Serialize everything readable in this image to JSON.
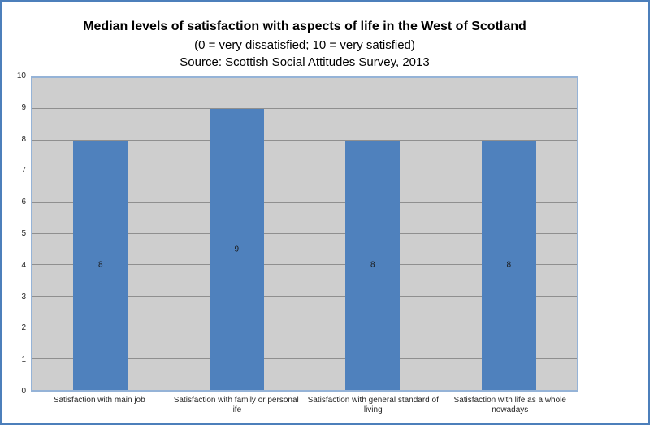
{
  "chart_data": {
    "type": "bar",
    "title": "Median levels of satisfaction with aspects of life in the West of Scotland",
    "subtitle": "(0 = very dissatisfied; 10 = very satisfied)",
    "source": "Source: Scottish Social Attitudes Survey, 2013",
    "categories": [
      "Satisfaction with main job",
      "Satisfaction with family or personal life",
      "Satisfaction with general standard of living",
      "Satisfaction with  life as a whole nowadays"
    ],
    "values": [
      8,
      9,
      8,
      8
    ],
    "data_labels": [
      "8",
      "9",
      "8",
      "8"
    ],
    "xlabel": "",
    "ylabel": "",
    "ylim": [
      0,
      10
    ],
    "yticks": [
      0,
      1,
      2,
      3,
      4,
      5,
      6,
      7,
      8,
      9,
      10
    ],
    "grid": true,
    "legend_position": "none",
    "colors": {
      "bar": "#4F81BD",
      "plot_background": "#CECECE",
      "gridline": "#8F8F8F",
      "plot_border": "#95B3D7",
      "figure_border": "#4C7FBB",
      "background": "#FFFFFF",
      "label_text": "#262626",
      "title_text": "#000000"
    }
  }
}
